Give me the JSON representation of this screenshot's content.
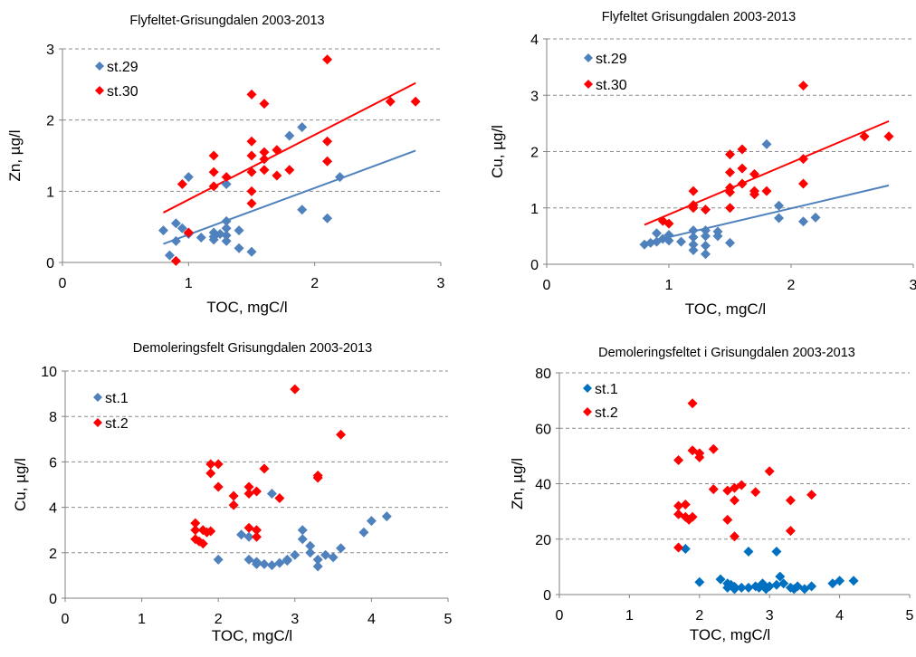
{
  "chart_data": [
    {
      "type": "scatter",
      "title": "Flyfeltet-Grisungdalen 2003-2013",
      "xlabel": "TOC, mgC/l",
      "ylabel": "Zn, µg/l",
      "xlim": [
        0,
        3
      ],
      "ylim": [
        0,
        3
      ],
      "xticks": [
        "0",
        "1",
        "2",
        "3"
      ],
      "yticks": [
        "0",
        "1",
        "2",
        "3"
      ],
      "grid": "horizontal dashed",
      "legend_position": "top-left",
      "series": [
        {
          "name": "st.29",
          "color": "#4f81bd",
          "marker": "diamond",
          "points": [
            [
              0.8,
              0.45
            ],
            [
              0.85,
              0.1
            ],
            [
              0.9,
              0.55
            ],
            [
              0.9,
              0.3
            ],
            [
              0.95,
              0.48
            ],
            [
              1.0,
              1.2
            ],
            [
              1.0,
              0.4
            ],
            [
              1.1,
              0.35
            ],
            [
              1.2,
              0.42
            ],
            [
              1.2,
              0.36
            ],
            [
              1.2,
              0.32
            ],
            [
              1.25,
              0.4
            ],
            [
              1.3,
              0.58
            ],
            [
              1.3,
              0.48
            ],
            [
              1.3,
              0.38
            ],
            [
              1.3,
              0.3
            ],
            [
              1.3,
              1.1
            ],
            [
              1.4,
              0.45
            ],
            [
              1.4,
              0.2
            ],
            [
              1.5,
              0.15
            ],
            [
              1.8,
              1.78
            ],
            [
              1.9,
              1.9
            ],
            [
              1.9,
              0.74
            ],
            [
              2.1,
              0.62
            ],
            [
              2.2,
              1.2
            ]
          ],
          "trendline": [
            [
              0.8,
              0.26
            ],
            [
              2.8,
              1.57
            ]
          ]
        },
        {
          "name": "st.30",
          "color": "#ff0000",
          "marker": "diamond",
          "points": [
            [
              0.9,
              0.02
            ],
            [
              0.95,
              1.1
            ],
            [
              1.0,
              0.42
            ],
            [
              1.2,
              1.5
            ],
            [
              1.2,
              1.27
            ],
            [
              1.2,
              1.07
            ],
            [
              1.3,
              1.2
            ],
            [
              1.5,
              2.36
            ],
            [
              1.5,
              1.7
            ],
            [
              1.5,
              1.5
            ],
            [
              1.5,
              1.27
            ],
            [
              1.5,
              1.0
            ],
            [
              1.5,
              0.83
            ],
            [
              1.6,
              1.55
            ],
            [
              1.6,
              1.45
            ],
            [
              1.6,
              1.3
            ],
            [
              1.6,
              2.23
            ],
            [
              1.7,
              1.58
            ],
            [
              1.7,
              1.22
            ],
            [
              1.8,
              1.3
            ],
            [
              2.1,
              2.85
            ],
            [
              2.1,
              1.7
            ],
            [
              2.1,
              1.42
            ],
            [
              2.6,
              2.26
            ],
            [
              2.8,
              2.26
            ]
          ],
          "trendline": [
            [
              0.8,
              0.7
            ],
            [
              2.8,
              2.52
            ]
          ]
        }
      ]
    },
    {
      "type": "scatter",
      "title": "Flyfeltet Grisungdalen  2003-2013",
      "xlabel": "TOC, mgC/l",
      "ylabel": "Cu, µg/l",
      "xlim": [
        0,
        3
      ],
      "ylim": [
        0,
        4
      ],
      "xticks": [
        "0",
        "1",
        "2",
        "3"
      ],
      "yticks": [
        "0",
        "1",
        "2",
        "3",
        "4"
      ],
      "grid": "horizontal dashed",
      "legend_position": "top-left",
      "series": [
        {
          "name": "st.29",
          "color": "#4f81bd",
          "marker": "diamond",
          "points": [
            [
              0.8,
              0.35
            ],
            [
              0.85,
              0.38
            ],
            [
              0.9,
              0.55
            ],
            [
              0.9,
              0.4
            ],
            [
              0.95,
              0.45
            ],
            [
              1.0,
              0.52
            ],
            [
              1.0,
              0.42
            ],
            [
              1.1,
              0.4
            ],
            [
              1.2,
              0.6
            ],
            [
              1.2,
              0.48
            ],
            [
              1.2,
              0.35
            ],
            [
              1.2,
              0.25
            ],
            [
              1.3,
              0.6
            ],
            [
              1.3,
              0.5
            ],
            [
              1.3,
              0.33
            ],
            [
              1.3,
              0.18
            ],
            [
              1.4,
              0.58
            ],
            [
              1.4,
              0.5
            ],
            [
              1.5,
              0.38
            ],
            [
              1.8,
              2.13
            ],
            [
              1.9,
              1.04
            ],
            [
              1.9,
              0.82
            ],
            [
              2.1,
              0.76
            ],
            [
              2.2,
              0.83
            ]
          ],
          "trendline": [
            [
              0.8,
              0.38
            ],
            [
              2.8,
              1.4
            ]
          ]
        },
        {
          "name": "st.30",
          "color": "#ff0000",
          "marker": "diamond",
          "points": [
            [
              0.95,
              0.77
            ],
            [
              1.0,
              0.72
            ],
            [
              1.2,
              1.3
            ],
            [
              1.2,
              1.05
            ],
            [
              1.2,
              1.0
            ],
            [
              1.3,
              0.97
            ],
            [
              1.5,
              1.95
            ],
            [
              1.5,
              1.63
            ],
            [
              1.5,
              1.36
            ],
            [
              1.5,
              1.28
            ],
            [
              1.5,
              1.0
            ],
            [
              1.6,
              2.04
            ],
            [
              1.6,
              1.7
            ],
            [
              1.6,
              1.43
            ],
            [
              1.7,
              1.6
            ],
            [
              1.7,
              1.3
            ],
            [
              1.7,
              1.24
            ],
            [
              1.8,
              1.3
            ],
            [
              2.1,
              3.17
            ],
            [
              2.1,
              1.87
            ],
            [
              2.1,
              1.43
            ],
            [
              2.6,
              2.27
            ],
            [
              2.8,
              2.27
            ]
          ],
          "trendline": [
            [
              0.8,
              0.7
            ],
            [
              2.8,
              2.54
            ]
          ]
        }
      ]
    },
    {
      "type": "scatter",
      "title": "Demoleringsfelt Grisungdalen 2003-2013",
      "xlabel": "TOC, mgC/l",
      "ylabel": "Cu, µg/l",
      "xlim": [
        0,
        5
      ],
      "ylim": [
        0,
        10
      ],
      "xticks": [
        "0",
        "1",
        "2",
        "3",
        "4",
        "5"
      ],
      "yticks": [
        "0",
        "2",
        "4",
        "6",
        "8",
        "10"
      ],
      "grid": "horizontal dashed",
      "legend_position": "top-left",
      "series": [
        {
          "name": "st.1",
          "color": "#4f81bd",
          "marker": "diamond",
          "points": [
            [
              2.0,
              1.7
            ],
            [
              2.3,
              2.8
            ],
            [
              2.4,
              2.7
            ],
            [
              2.4,
              1.7
            ],
            [
              2.5,
              1.6
            ],
            [
              2.5,
              1.5
            ],
            [
              2.6,
              1.5
            ],
            [
              2.7,
              4.6
            ],
            [
              2.7,
              1.45
            ],
            [
              2.8,
              1.55
            ],
            [
              2.9,
              1.7
            ],
            [
              2.9,
              1.65
            ],
            [
              3.0,
              1.9
            ],
            [
              3.1,
              3.0
            ],
            [
              3.1,
              2.6
            ],
            [
              3.2,
              2.3
            ],
            [
              3.2,
              2.0
            ],
            [
              3.3,
              1.7
            ],
            [
              3.3,
              1.4
            ],
            [
              3.4,
              1.9
            ],
            [
              3.5,
              1.8
            ],
            [
              3.6,
              2.2
            ],
            [
              3.9,
              2.9
            ],
            [
              4.0,
              3.4
            ],
            [
              4.2,
              3.6
            ]
          ],
          "trendline": []
        },
        {
          "name": "st.2",
          "color": "#ff0000",
          "marker": "diamond",
          "points": [
            [
              1.7,
              3.3
            ],
            [
              1.7,
              3.0
            ],
            [
              1.7,
              2.6
            ],
            [
              1.75,
              2.5
            ],
            [
              1.8,
              3.0
            ],
            [
              1.8,
              2.4
            ],
            [
              1.85,
              2.9
            ],
            [
              1.9,
              5.9
            ],
            [
              1.9,
              5.5
            ],
            [
              1.9,
              2.95
            ],
            [
              2.0,
              5.9
            ],
            [
              2.0,
              4.9
            ],
            [
              2.2,
              4.5
            ],
            [
              2.2,
              4.1
            ],
            [
              2.4,
              4.9
            ],
            [
              2.4,
              4.6
            ],
            [
              2.4,
              3.1
            ],
            [
              2.5,
              4.7
            ],
            [
              2.5,
              3.0
            ],
            [
              2.5,
              2.7
            ],
            [
              2.6,
              5.7
            ],
            [
              2.8,
              4.4
            ],
            [
              3.0,
              9.2
            ],
            [
              3.3,
              5.4
            ],
            [
              3.3,
              5.3
            ],
            [
              3.6,
              7.2
            ]
          ],
          "trendline": []
        }
      ]
    },
    {
      "type": "scatter",
      "title": "Demoleringsfeltet i Grisungdalen 2003-2013",
      "xlabel": "TOC, mgC/l",
      "ylabel": "Zn, µg/l",
      "xlim": [
        0,
        5
      ],
      "ylim": [
        0,
        80
      ],
      "xticks": [
        "0",
        "1",
        "2",
        "3",
        "4",
        "5"
      ],
      "yticks": [
        "0",
        "20",
        "40",
        "60",
        "80"
      ],
      "grid": "horizontal dashed",
      "legend_position": "top-left",
      "series": [
        {
          "name": "st.1",
          "color": "#0070c0",
          "marker": "diamond",
          "points": [
            [
              1.8,
              16.5
            ],
            [
              2.0,
              4.5
            ],
            [
              2.3,
              5.5
            ],
            [
              2.4,
              4.0
            ],
            [
              2.4,
              2.5
            ],
            [
              2.45,
              3.5
            ],
            [
              2.5,
              2.8
            ],
            [
              2.5,
              2.0
            ],
            [
              2.6,
              2.5
            ],
            [
              2.7,
              15.5
            ],
            [
              2.7,
              2.5
            ],
            [
              2.8,
              3.0
            ],
            [
              2.85,
              2.5
            ],
            [
              2.9,
              4.0
            ],
            [
              2.95,
              2.0
            ],
            [
              3.0,
              3.0
            ],
            [
              3.1,
              15.5
            ],
            [
              3.1,
              3.5
            ],
            [
              3.15,
              6.5
            ],
            [
              3.2,
              4.0
            ],
            [
              3.3,
              2.5
            ],
            [
              3.35,
              2.0
            ],
            [
              3.4,
              3.0
            ],
            [
              3.5,
              2.0
            ],
            [
              3.6,
              3.0
            ],
            [
              3.9,
              4.0
            ],
            [
              4.0,
              5.0
            ],
            [
              4.2,
              5.0
            ]
          ],
          "trendline": []
        },
        {
          "name": "st.2",
          "color": "#ff0000",
          "marker": "diamond",
          "points": [
            [
              1.7,
              48.5
            ],
            [
              1.7,
              32.0
            ],
            [
              1.7,
              29.0
            ],
            [
              1.7,
              17.0
            ],
            [
              1.8,
              32.5
            ],
            [
              1.8,
              28.0
            ],
            [
              1.85,
              27.0
            ],
            [
              1.9,
              28.0
            ],
            [
              1.9,
              69.0
            ],
            [
              1.9,
              52.0
            ],
            [
              2.0,
              51.0
            ],
            [
              2.0,
              49.5
            ],
            [
              2.2,
              52.5
            ],
            [
              2.2,
              38.0
            ],
            [
              2.4,
              37.5
            ],
            [
              2.4,
              27.0
            ],
            [
              2.5,
              38.5
            ],
            [
              2.5,
              34.0
            ],
            [
              2.5,
              21.0
            ],
            [
              2.6,
              39.5
            ],
            [
              2.8,
              37.0
            ],
            [
              3.0,
              44.5
            ],
            [
              3.3,
              34.0
            ],
            [
              3.3,
              23.0
            ],
            [
              3.6,
              36.0
            ]
          ],
          "trendline": []
        }
      ]
    }
  ]
}
